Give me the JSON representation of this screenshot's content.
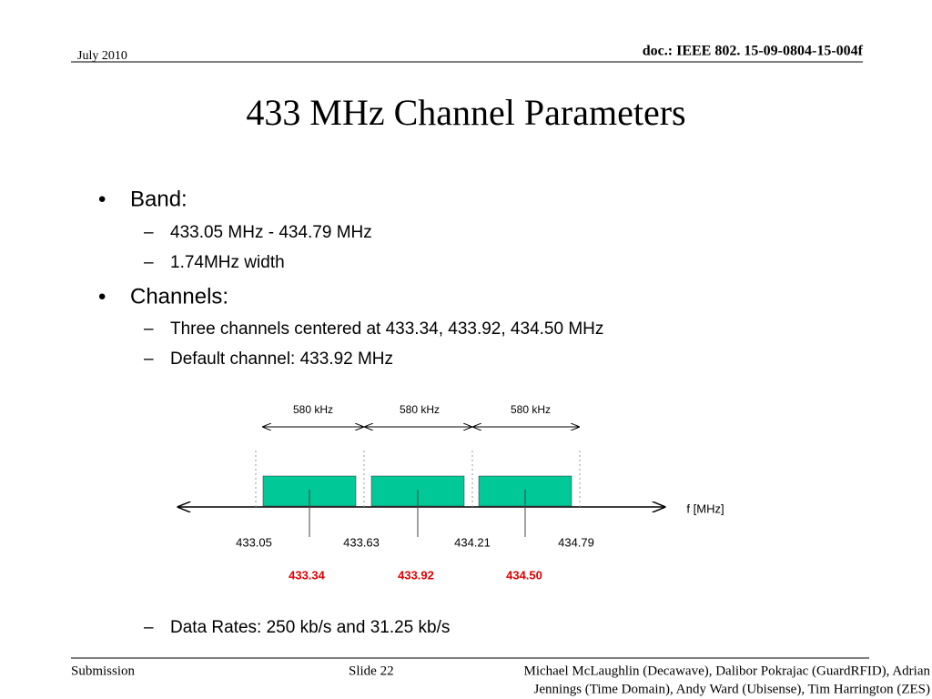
{
  "header": {
    "date": "July 2010",
    "doc": "doc.: IEEE 802. 15-09-0804-15-004f"
  },
  "title": "433 MHz Channel Parameters",
  "bullets": [
    {
      "text": "Band:",
      "sub": [
        "433.05 MHz - 434.79 MHz",
        "1.74MHz width"
      ]
    },
    {
      "text": "Channels:",
      "sub": [
        "Three channels centered at 433.34, 433.92, 434.50 MHz",
        "Default channel: 433.92 MHz"
      ]
    }
  ],
  "diagram": {
    "widths": [
      "580 kHz",
      "580 kHz",
      "580 kHz"
    ],
    "edges": [
      "433.05",
      "433.63",
      "434.21",
      "434.79"
    ],
    "centers": [
      "433.34",
      "433.92",
      "434.50"
    ],
    "axis_label": "f [MHz]"
  },
  "after": "Data Rates: 250 kb/s and 31.25 kb/s",
  "footer": {
    "left": "Submission",
    "slide": "Slide 22",
    "authors": [
      "Michael McLaughlin (Decawave), Dalibor Pokrajac (GuardRFID), Adrian",
      "Jennings (Time Domain), Andy Ward (Ubisense), Tim Harrington (ZES)"
    ]
  }
}
